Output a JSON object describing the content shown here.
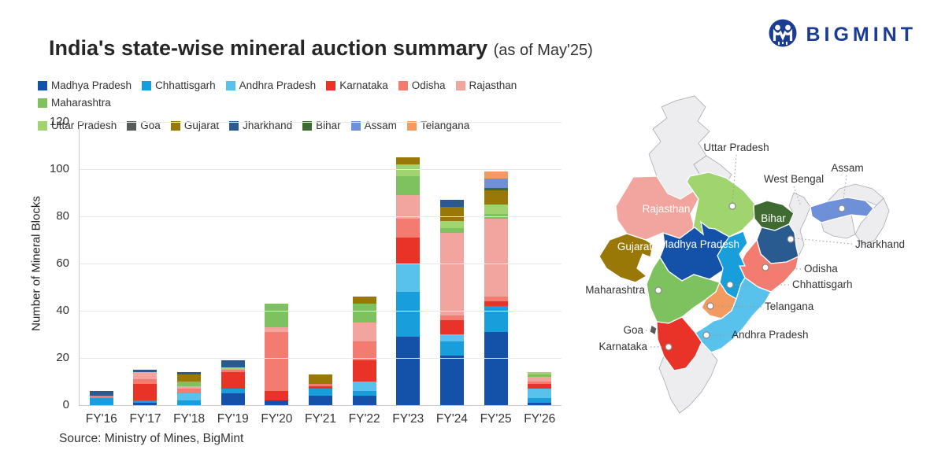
{
  "header": {
    "title": "India's state-wise mineral auction summary",
    "subtitle": "(as of May'25)",
    "brand": "BIGMINT",
    "brand_color": "#1b3c94"
  },
  "chart_data": {
    "type": "bar",
    "stacked": true,
    "title": "India's state-wise mineral auction summary (as of May'25)",
    "ylabel": "Number of Mineral Blocks",
    "xlabel": "",
    "ylim": [
      0,
      120
    ],
    "ystep": 20,
    "grid": true,
    "legend_position": "top",
    "categories": [
      "FY'16",
      "FY'17",
      "FY'18",
      "FY'19",
      "FY'20",
      "FY'21",
      "FY'22",
      "FY'23",
      "FY'24",
      "FY'25",
      "FY'26"
    ],
    "series": [
      {
        "name": "Madhya Pradesh",
        "key": "madhya-pradesh",
        "color": "#1352a8",
        "values": [
          0,
          1,
          0,
          5,
          2,
          4,
          4,
          29,
          21,
          31,
          1
        ]
      },
      {
        "name": "Chhattisgarh",
        "key": "chhattisgarh",
        "color": "#189fdb",
        "values": [
          3,
          1,
          2,
          2,
          0,
          3,
          2,
          19,
          6,
          11,
          2
        ]
      },
      {
        "name": "Andhra Pradesh",
        "key": "andhra-pradesh",
        "color": "#58c2ed",
        "values": [
          0,
          0,
          3,
          0,
          0,
          0,
          4,
          12,
          3,
          0,
          4
        ]
      },
      {
        "name": "Karnataka",
        "key": "karnataka",
        "color": "#e93329",
        "values": [
          0,
          7,
          0,
          7,
          4,
          1,
          9,
          11,
          6,
          2,
          2
        ]
      },
      {
        "name": "Odisha",
        "key": "odisha",
        "color": "#f47b70",
        "values": [
          1,
          2,
          2,
          1,
          25,
          1,
          8,
          8,
          2,
          2,
          1
        ]
      },
      {
        "name": "Rajasthan",
        "key": "rajasthan",
        "color": "#f2a59f",
        "values": [
          0,
          3,
          1,
          0,
          2,
          0,
          8,
          10,
          35,
          33,
          2
        ]
      },
      {
        "name": "Maharashtra",
        "key": "maharashtra",
        "color": "#7ec260",
        "values": [
          0,
          0,
          2,
          0,
          10,
          0,
          8,
          8,
          2,
          2,
          1
        ]
      },
      {
        "name": "Uttar Pradesh",
        "key": "uttar-pradesh",
        "color": "#9fd46f",
        "values": [
          0,
          0,
          0,
          1,
          0,
          0,
          0,
          5,
          3,
          4,
          1
        ]
      },
      {
        "name": "Goa",
        "key": "goa",
        "color": "#595a5c",
        "values": [
          0,
          0,
          0,
          0,
          0,
          0,
          0,
          0,
          0,
          0,
          0
        ]
      },
      {
        "name": "Gujarat",
        "key": "gujarat",
        "color": "#9a7807",
        "values": [
          0,
          0,
          3,
          0,
          0,
          4,
          3,
          3,
          6,
          6,
          0
        ]
      },
      {
        "name": "Jharkhand",
        "key": "jharkhand",
        "color": "#2a5b90",
        "values": [
          2,
          1,
          1,
          3,
          0,
          0,
          0,
          0,
          3,
          0,
          0
        ]
      },
      {
        "name": "Bihar",
        "key": "bihar",
        "color": "#3f6a31",
        "values": [
          0,
          0,
          0,
          0,
          0,
          0,
          0,
          0,
          0,
          1,
          0
        ]
      },
      {
        "name": "Assam",
        "key": "assam",
        "color": "#6e90d8",
        "values": [
          0,
          0,
          0,
          0,
          0,
          0,
          0,
          0,
          0,
          4,
          0
        ]
      },
      {
        "name": "Telangana",
        "key": "telangana",
        "color": "#f39a61",
        "values": [
          0,
          0,
          0,
          0,
          0,
          0,
          0,
          0,
          0,
          3,
          0
        ]
      }
    ],
    "totals": [
      6,
      15,
      14,
      19,
      43,
      13,
      46,
      105,
      87,
      99,
      14
    ]
  },
  "source": "Source: Ministry of Mines, BigMint",
  "map": {
    "callouts": [
      "Uttar Pradesh",
      "West Bengal",
      "Assam",
      "Jharkhand",
      "Odisha",
      "Chhattisgarh",
      "Telangana",
      "Andhra Pradesh",
      "Maharashtra",
      "Goa",
      "Karnataka"
    ],
    "inside": [
      "Rajasthan",
      "Gujarat",
      "Madhya Pradesh",
      "Bihar"
    ],
    "fills": {
      "rajasthan": "#f2a59f",
      "gujarat": "#9a7807",
      "madhya-pradesh": "#1352a8",
      "uttar-pradesh": "#9fd46f",
      "bihar": "#3f6a31",
      "jharkhand": "#2a5b90",
      "odisha": "#f47b70",
      "chhattisgarh": "#189fdb",
      "telangana": "#f39a61",
      "andhra-pradesh": "#58c2ed",
      "maharashtra": "#7ec260",
      "goa": "#595a5c",
      "karnataka": "#e93329",
      "assam": "#6e90d8"
    }
  }
}
